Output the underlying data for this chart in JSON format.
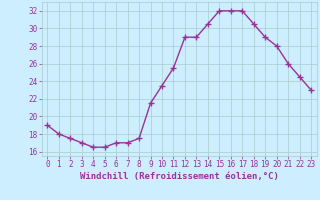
{
  "x": [
    0,
    1,
    2,
    3,
    4,
    5,
    6,
    7,
    8,
    9,
    10,
    11,
    12,
    13,
    14,
    15,
    16,
    17,
    18,
    19,
    20,
    21,
    22,
    23
  ],
  "y": [
    19.0,
    18.0,
    17.5,
    17.0,
    16.5,
    16.5,
    17.0,
    17.0,
    17.5,
    21.5,
    23.5,
    25.5,
    29.0,
    29.0,
    30.5,
    32.0,
    32.0,
    32.0,
    30.5,
    29.0,
    28.0,
    26.0,
    24.5,
    23.0
  ],
  "line_color": "#993399",
  "marker": "+",
  "marker_size": 4,
  "marker_linewidth": 1.0,
  "line_width": 1.0,
  "background_color": "#cceeff",
  "grid_color": "#aacccc",
  "xlabel": "Windchill (Refroidissement éolien,°C)",
  "xlabel_fontsize": 6.5,
  "ytick_labels": [
    "16",
    "18",
    "20",
    "22",
    "24",
    "26",
    "28",
    "30",
    "32"
  ],
  "ytick_values": [
    16,
    18,
    20,
    22,
    24,
    26,
    28,
    30,
    32
  ],
  "xtick_labels": [
    "0",
    "1",
    "2",
    "3",
    "4",
    "5",
    "6",
    "7",
    "8",
    "9",
    "10",
    "11",
    "12",
    "13",
    "14",
    "15",
    "16",
    "17",
    "18",
    "19",
    "20",
    "21",
    "22",
    "23"
  ],
  "ylim": [
    15.5,
    33.0
  ],
  "xlim": [
    -0.5,
    23.5
  ],
  "tick_color": "#993399",
  "tick_fontsize": 5.5,
  "xlabel_color": "#993399"
}
